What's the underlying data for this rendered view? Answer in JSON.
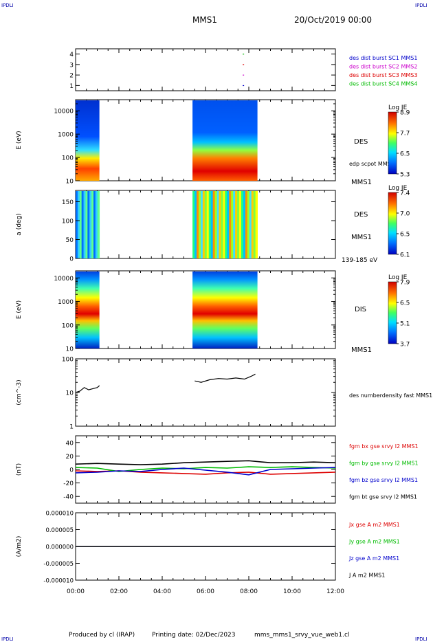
{
  "header": {
    "corner_tl": "IPDLI",
    "corner_tr": "IPDLI",
    "corner_bl": "IPDLI",
    "corner_br": "IPDLI",
    "mission": "MMS1",
    "date": "20/Oct/2019 00:00"
  },
  "footer": {
    "produced": "Produced by cl (IRAP)",
    "printing": "Printing date: 02/Dec/2023",
    "file": "mms_mms1_srvy_vue_web1.cl"
  },
  "colors": {
    "blue": "#0000cc",
    "magenta": "#cc00cc",
    "red": "#dd0000",
    "green": "#00bb00",
    "black": "#000000"
  },
  "x_axis": {
    "ticks": [
      "00:00",
      "02:00",
      "04:00",
      "06:00",
      "08:00",
      "10:00",
      "12:00"
    ],
    "range_hours": [
      0,
      12
    ]
  },
  "chart_data": [
    {
      "type": "scatter",
      "panel": "burst",
      "yticks": [
        "4",
        "3",
        "2",
        "1"
      ],
      "ylim": [
        0.5,
        4.5
      ],
      "series": [
        {
          "name": "des dist burst SC1 MMS1",
          "color": "blue",
          "y": 1,
          "x_hours": [
            7.75
          ]
        },
        {
          "name": "des dist burst SC2 MMS2",
          "color": "magenta",
          "y": 2,
          "x_hours": [
            7.75
          ]
        },
        {
          "name": "des dist burst SC3 MMS3",
          "color": "red",
          "y": 3,
          "x_hours": [
            7.75
          ]
        },
        {
          "name": "des dist burst SC4 MMS4",
          "color": "green",
          "y": 4,
          "x_hours": [
            7.75
          ]
        }
      ]
    },
    {
      "type": "heatmap",
      "panel": "des_energy",
      "ylabel": "E (eV)",
      "yscale": "log",
      "ylim": [
        10,
        30000
      ],
      "yticks": [
        "10000",
        "1000",
        "100",
        "10"
      ],
      "intervals_hours": [
        [
          0.0,
          1.1
        ],
        [
          5.4,
          8.4
        ]
      ],
      "label_main": "DES",
      "label_sub": "MMS1",
      "label_extra": "edp scpot MMS1",
      "colorbar": {
        "title": "Log JE",
        "ticks": [
          "8.9",
          "7.7",
          "6.5",
          "5.3"
        ],
        "range": [
          5.3,
          8.9
        ]
      }
    },
    {
      "type": "heatmap",
      "panel": "des_pitch",
      "ylabel": "a (deg)",
      "ylim": [
        0,
        180
      ],
      "yticks": [
        "150",
        "100",
        "50",
        "0"
      ],
      "intervals_hours": [
        [
          0.0,
          1.1
        ],
        [
          5.4,
          8.4
        ]
      ],
      "label_main": "DES",
      "label_sub": "MMS1",
      "label_extra": "139-185 eV",
      "colorbar": {
        "title": "Log JE",
        "ticks": [
          "7.4",
          "7.0",
          "6.5",
          "6.1"
        ],
        "range": [
          6.1,
          7.4
        ]
      }
    },
    {
      "type": "heatmap",
      "panel": "dis_energy",
      "ylabel": "E (eV)",
      "yscale": "log",
      "ylim": [
        10,
        20000
      ],
      "yticks": [
        "10000",
        "1000",
        "100",
        "10"
      ],
      "intervals_hours": [
        [
          0.0,
          1.1
        ],
        [
          5.4,
          8.4
        ]
      ],
      "label_main": "DIS",
      "label_sub": "MMS1",
      "colorbar": {
        "title": "Log JE",
        "ticks": [
          "7.9",
          "6.5",
          "5.1",
          "3.7"
        ],
        "range": [
          3.7,
          7.9
        ]
      }
    },
    {
      "type": "line",
      "panel": "density",
      "ylabel": "(cm^-3)",
      "yscale": "log",
      "ylim": [
        1,
        100
      ],
      "yticks": [
        "100",
        "10",
        "1"
      ],
      "series": [
        {
          "name": "des numberdensity fast MMS1",
          "color": "black",
          "segments": [
            {
              "x_hours": [
                0.0,
                0.2,
                0.4,
                0.6,
                0.8,
                1.0,
                1.1
              ],
              "y": [
                10,
                11,
                14,
                12,
                13,
                14,
                16
              ]
            },
            {
              "x_hours": [
                5.5,
                5.8,
                6.2,
                6.6,
                7.0,
                7.4,
                7.8,
                8.1,
                8.3
              ],
              "y": [
                22,
                20,
                24,
                26,
                25,
                27,
                25,
                30,
                35
              ]
            }
          ]
        }
      ]
    },
    {
      "type": "line",
      "panel": "fgm",
      "ylabel": "(nT)",
      "ylim": [
        -50,
        50
      ],
      "yticks": [
        "40",
        "20",
        "0",
        "-20",
        "-40"
      ],
      "series": [
        {
          "name": "fgm bx gse srvy l2 MMS1",
          "color": "red",
          "x_hours": [
            0,
            1,
            2,
            3,
            4,
            5,
            6,
            7,
            8,
            9,
            10,
            11,
            12
          ],
          "y": [
            -2,
            -3,
            -2,
            -4,
            -5,
            -6,
            -7,
            -5,
            -4,
            -7,
            -6,
            -5,
            -4
          ]
        },
        {
          "name": "fgm by gse srvy l2 MMS1",
          "color": "green",
          "x_hours": [
            0,
            1,
            2,
            3,
            4,
            5,
            6,
            7,
            8,
            9,
            10,
            11,
            12
          ],
          "y": [
            3,
            2,
            -3,
            0,
            2,
            1,
            3,
            2,
            4,
            3,
            4,
            3,
            2
          ]
        },
        {
          "name": "fgm bz gse srvy l2 MMS1",
          "color": "blue",
          "x_hours": [
            0,
            1,
            2,
            3,
            4,
            5,
            6,
            7,
            8,
            9,
            10,
            11,
            12
          ],
          "y": [
            -5,
            -4,
            -2,
            -3,
            0,
            2,
            -1,
            -4,
            -8,
            0,
            1,
            2,
            3
          ]
        },
        {
          "name": "fgm bt gse srvy l2 MMS1",
          "color": "black",
          "x_hours": [
            0,
            1,
            2,
            3,
            4,
            5,
            6,
            7,
            8,
            9,
            10,
            11,
            12
          ],
          "y": [
            8,
            9,
            8,
            7,
            8,
            10,
            11,
            12,
            13,
            10,
            10,
            11,
            10
          ]
        }
      ]
    },
    {
      "type": "line",
      "panel": "current",
      "ylabel": "(A/m2)",
      "ylim": [
        -1e-05,
        1e-05
      ],
      "yticks": [
        "0.000010",
        "0.000005",
        "0.000000",
        "-0.000005",
        "-0.000010"
      ],
      "series": [
        {
          "name": "Jx gse A m2 MMS1",
          "color": "red",
          "x_hours": [
            0,
            12
          ],
          "y": [
            0,
            0
          ]
        },
        {
          "name": "Jy gse A m2 MMS1",
          "color": "green",
          "x_hours": [
            0,
            12
          ],
          "y": [
            0,
            0
          ]
        },
        {
          "name": "Jz gse A m2 MMS1",
          "color": "blue",
          "x_hours": [
            0,
            12
          ],
          "y": [
            0,
            0
          ]
        },
        {
          "name": "J A m2 MMS1",
          "color": "black",
          "x_hours": [
            0,
            12
          ],
          "y": [
            0,
            0
          ]
        }
      ]
    }
  ]
}
